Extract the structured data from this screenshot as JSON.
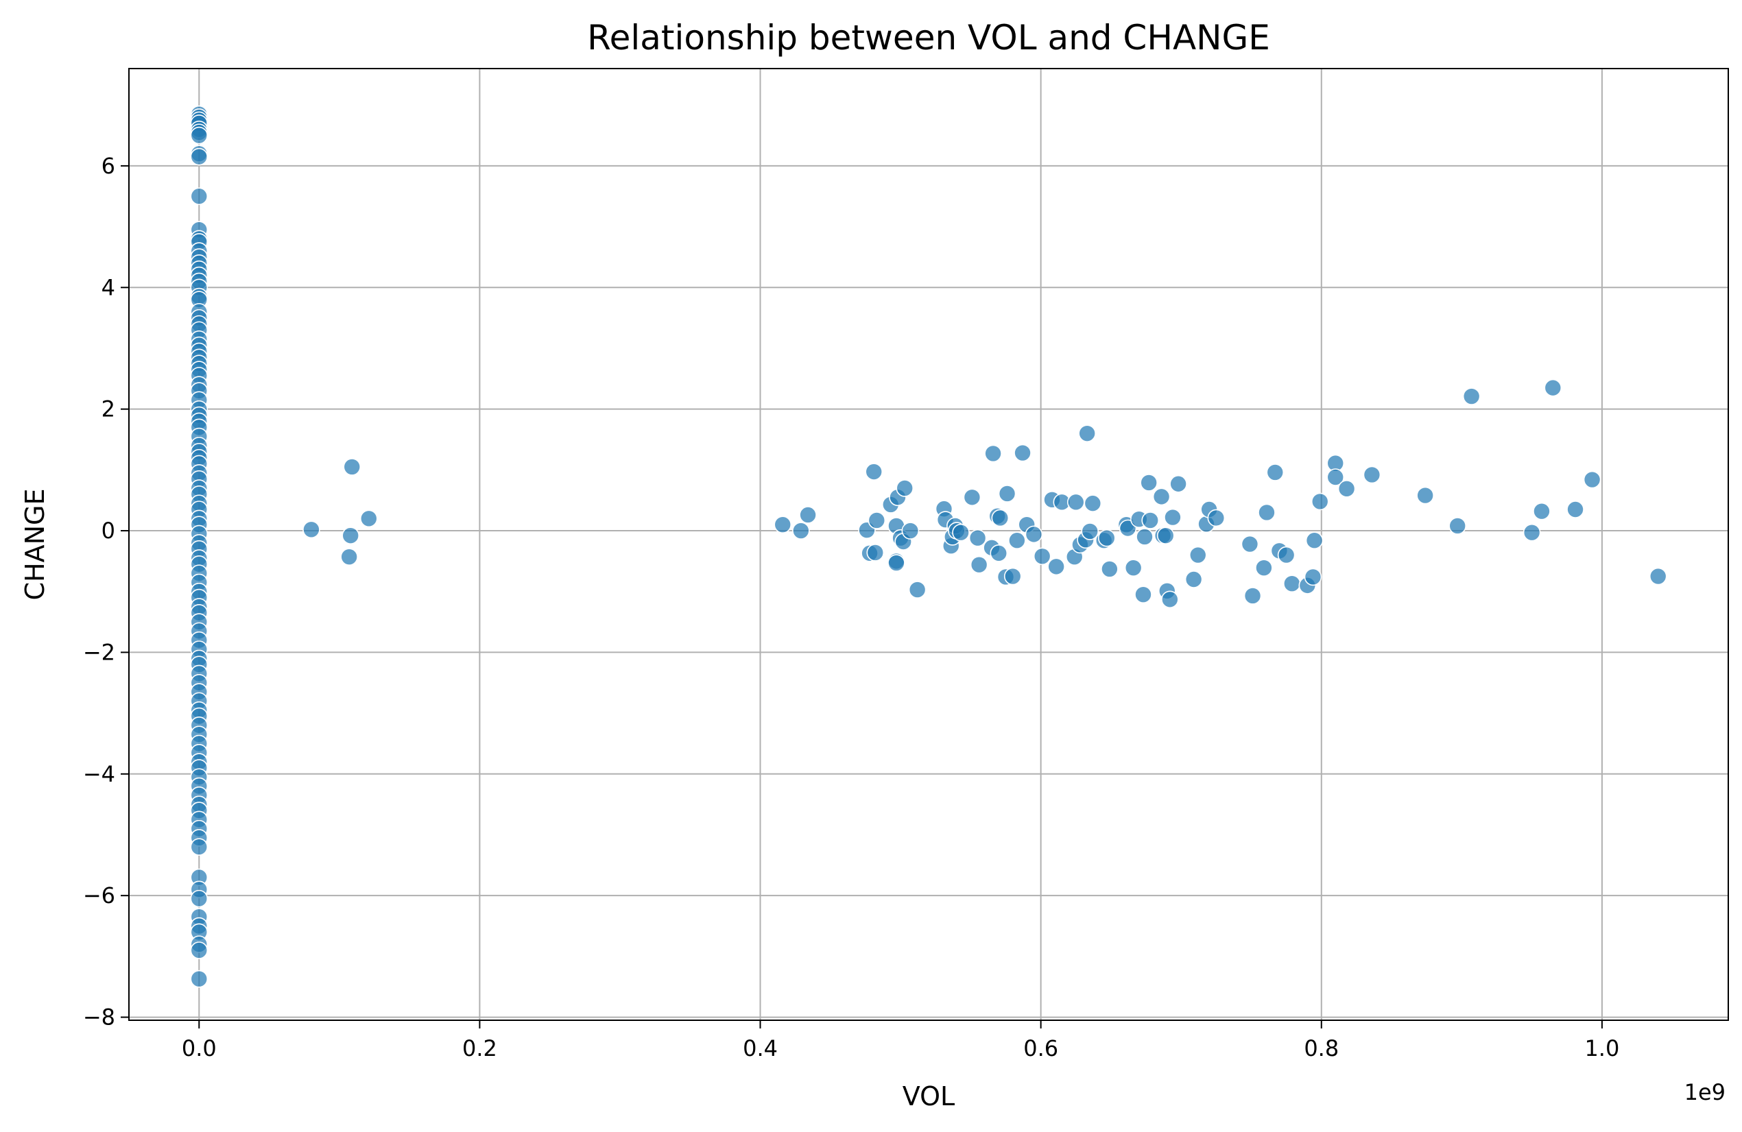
{
  "chart_data": {
    "type": "scatter",
    "title": "Relationship between VOL and CHANGE",
    "xlabel": "VOL",
    "ylabel": "CHANGE",
    "x_offset_label": "1e9",
    "x_scale_note": "x values in units of 1e9",
    "xlim": [
      -0.05,
      1.09
    ],
    "ylim": [
      -8.05,
      7.6
    ],
    "x_ticks": [
      0.0,
      0.2,
      0.4,
      0.6,
      0.8,
      1.0
    ],
    "x_tick_labels": [
      "0.0",
      "0.2",
      "0.4",
      "0.6",
      "0.8",
      "1.0"
    ],
    "y_ticks": [
      -8,
      -6,
      -4,
      -2,
      0,
      2,
      4,
      6
    ],
    "y_tick_labels": [
      "−8",
      "−6",
      "−4",
      "−2",
      "0",
      "2",
      "4",
      "6"
    ],
    "grid": true,
    "colors": {
      "point": "#1f77b4",
      "grid": "#b0b0b0"
    },
    "series": [
      {
        "points": [
          [
            0,
            6.85
          ],
          [
            0,
            6.8
          ],
          [
            0,
            6.75
          ],
          [
            0,
            6.7
          ],
          [
            0,
            6.6
          ],
          [
            0,
            6.55
          ],
          [
            0,
            6.5
          ],
          [
            0,
            6.2
          ],
          [
            0,
            6.15
          ],
          [
            0,
            5.5
          ],
          [
            0,
            4.95
          ],
          [
            0,
            4.8
          ],
          [
            0,
            4.75
          ],
          [
            0,
            4.6
          ],
          [
            0,
            4.5
          ],
          [
            0,
            4.4
          ],
          [
            0,
            4.3
          ],
          [
            0,
            4.2
          ],
          [
            0,
            4.1
          ],
          [
            0,
            4.0
          ],
          [
            0,
            3.85
          ],
          [
            0,
            3.8
          ],
          [
            0,
            3.6
          ],
          [
            0,
            3.5
          ],
          [
            0,
            3.4
          ],
          [
            0,
            3.3
          ],
          [
            0,
            3.15
          ],
          [
            0,
            3.05
          ],
          [
            0,
            2.95
          ],
          [
            0,
            2.85
          ],
          [
            0,
            2.75
          ],
          [
            0,
            2.65
          ],
          [
            0,
            2.55
          ],
          [
            0,
            2.4
          ],
          [
            0,
            2.3
          ],
          [
            0,
            2.15
          ],
          [
            0,
            2.0
          ],
          [
            0,
            1.9
          ],
          [
            0,
            1.8
          ],
          [
            0,
            1.7
          ],
          [
            0,
            1.55
          ],
          [
            0,
            1.4
          ],
          [
            0,
            1.3
          ],
          [
            0,
            1.2
          ],
          [
            0,
            1.1
          ],
          [
            0,
            0.95
          ],
          [
            0,
            0.85
          ],
          [
            0,
            0.7
          ],
          [
            0,
            0.6
          ],
          [
            0,
            0.45
          ],
          [
            0,
            0.35
          ],
          [
            0,
            0.2
          ],
          [
            0,
            0.1
          ],
          [
            0,
            -0.05
          ],
          [
            0,
            -0.2
          ],
          [
            0,
            -0.3
          ],
          [
            0,
            -0.45
          ],
          [
            0,
            -0.55
          ],
          [
            0,
            -0.7
          ],
          [
            0,
            -0.85
          ],
          [
            0,
            -1.0
          ],
          [
            0,
            -1.1
          ],
          [
            0,
            -1.25
          ],
          [
            0,
            -1.35
          ],
          [
            0,
            -1.5
          ],
          [
            0,
            -1.65
          ],
          [
            0,
            -1.8
          ],
          [
            0,
            -1.95
          ],
          [
            0,
            -2.1
          ],
          [
            0,
            -2.2
          ],
          [
            0,
            -2.35
          ],
          [
            0,
            -2.5
          ],
          [
            0,
            -2.65
          ],
          [
            0,
            -2.8
          ],
          [
            0,
            -2.95
          ],
          [
            0,
            -3.05
          ],
          [
            0,
            -3.2
          ],
          [
            0,
            -3.35
          ],
          [
            0,
            -3.5
          ],
          [
            0,
            -3.65
          ],
          [
            0,
            -3.8
          ],
          [
            0,
            -3.9
          ],
          [
            0,
            -4.05
          ],
          [
            0,
            -4.2
          ],
          [
            0,
            -4.35
          ],
          [
            0,
            -4.5
          ],
          [
            0,
            -4.6
          ],
          [
            0,
            -4.75
          ],
          [
            0,
            -4.9
          ],
          [
            0,
            -5.05
          ],
          [
            0,
            -5.2
          ],
          [
            0,
            -5.7
          ],
          [
            0,
            -5.9
          ],
          [
            0,
            -6.05
          ],
          [
            0,
            -6.35
          ],
          [
            0,
            -6.5
          ],
          [
            0,
            -6.6
          ],
          [
            0,
            -6.8
          ],
          [
            0,
            -6.9
          ],
          [
            0,
            -7.37
          ],
          [
            0.08,
            0.02
          ],
          [
            0.107,
            -0.43
          ],
          [
            0.108,
            -0.08
          ],
          [
            0.109,
            1.05
          ],
          [
            0.121,
            0.2
          ],
          [
            0.416,
            0.1
          ],
          [
            0.429,
            0.0
          ],
          [
            0.434,
            0.26
          ],
          [
            0.476,
            0.01
          ],
          [
            0.478,
            -0.37
          ],
          [
            0.481,
            0.97
          ],
          [
            0.482,
            -0.36
          ],
          [
            0.483,
            0.17
          ],
          [
            0.493,
            0.43
          ],
          [
            0.497,
            -0.5
          ],
          [
            0.497,
            0.08
          ],
          [
            0.497,
            -0.53
          ],
          [
            0.498,
            0.55
          ],
          [
            0.5,
            -0.12
          ],
          [
            0.502,
            -0.18
          ],
          [
            0.503,
            0.7
          ],
          [
            0.507,
            0.0
          ],
          [
            0.512,
            -0.97
          ],
          [
            0.531,
            0.36
          ],
          [
            0.532,
            0.18
          ],
          [
            0.536,
            -0.25
          ],
          [
            0.537,
            -0.1
          ],
          [
            0.539,
            0.08
          ],
          [
            0.54,
            0.0
          ],
          [
            0.543,
            -0.03
          ],
          [
            0.551,
            0.55
          ],
          [
            0.555,
            -0.12
          ],
          [
            0.556,
            -0.56
          ],
          [
            0.565,
            -0.28
          ],
          [
            0.566,
            1.27
          ],
          [
            0.569,
            0.24
          ],
          [
            0.57,
            -0.37
          ],
          [
            0.571,
            0.21
          ],
          [
            0.575,
            -0.76
          ],
          [
            0.576,
            0.61
          ],
          [
            0.58,
            -0.75
          ],
          [
            0.583,
            -0.16
          ],
          [
            0.587,
            1.28
          ],
          [
            0.59,
            0.1
          ],
          [
            0.595,
            -0.06
          ],
          [
            0.601,
            -0.42
          ],
          [
            0.608,
            0.51
          ],
          [
            0.611,
            -0.59
          ],
          [
            0.615,
            0.47
          ],
          [
            0.624,
            -0.43
          ],
          [
            0.625,
            0.47
          ],
          [
            0.628,
            -0.23
          ],
          [
            0.632,
            -0.15
          ],
          [
            0.633,
            1.6
          ],
          [
            0.635,
            -0.01
          ],
          [
            0.637,
            0.45
          ],
          [
            0.645,
            -0.16
          ],
          [
            0.647,
            -0.12
          ],
          [
            0.649,
            -0.63
          ],
          [
            0.661,
            0.1
          ],
          [
            0.662,
            0.04
          ],
          [
            0.666,
            -0.61
          ],
          [
            0.67,
            0.19
          ],
          [
            0.673,
            -1.05
          ],
          [
            0.674,
            -0.1
          ],
          [
            0.677,
            0.79
          ],
          [
            0.678,
            0.17
          ],
          [
            0.686,
            0.56
          ],
          [
            0.687,
            -0.08
          ],
          [
            0.689,
            -0.08
          ],
          [
            0.69,
            -0.99
          ],
          [
            0.692,
            -1.13
          ],
          [
            0.694,
            0.22
          ],
          [
            0.698,
            0.77
          ],
          [
            0.709,
            -0.8
          ],
          [
            0.712,
            -0.4
          ],
          [
            0.718,
            0.11
          ],
          [
            0.72,
            0.35
          ],
          [
            0.725,
            0.21
          ],
          [
            0.749,
            -0.22
          ],
          [
            0.751,
            -1.07
          ],
          [
            0.759,
            -0.61
          ],
          [
            0.761,
            0.3
          ],
          [
            0.767,
            0.96
          ],
          [
            0.77,
            -0.33
          ],
          [
            0.775,
            -0.4
          ],
          [
            0.779,
            -0.87
          ],
          [
            0.79,
            -0.9
          ],
          [
            0.794,
            -0.76
          ],
          [
            0.795,
            -0.16
          ],
          [
            0.799,
            0.48
          ],
          [
            0.81,
            1.11
          ],
          [
            0.81,
            0.88
          ],
          [
            0.818,
            0.69
          ],
          [
            0.836,
            0.92
          ],
          [
            0.874,
            0.58
          ],
          [
            0.897,
            0.08
          ],
          [
            0.907,
            2.21
          ],
          [
            0.95,
            -0.03
          ],
          [
            0.957,
            0.32
          ],
          [
            0.965,
            2.35
          ],
          [
            0.981,
            0.35
          ],
          [
            0.993,
            0.84
          ],
          [
            1.04,
            -0.75
          ]
        ]
      }
    ]
  }
}
